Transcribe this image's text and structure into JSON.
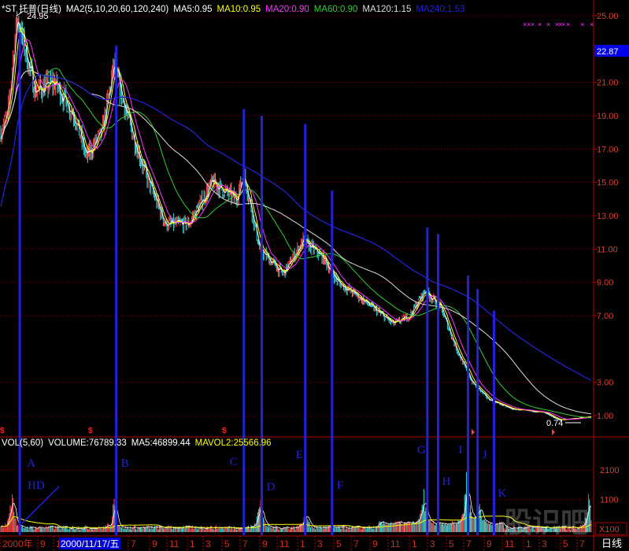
{
  "header": {
    "title": "*ST 托普(日线)",
    "indicator": "MA2(5,10,20,60,120,240)",
    "ma": [
      {
        "label": "MA5:0.95",
        "color": "#ffffff"
      },
      {
        "label": "MA10:0.95",
        "color": "#ffff00"
      },
      {
        "label": "MA20:0.90",
        "color": "#ff33ff"
      },
      {
        "label": "MA60:0.90",
        "color": "#33cc33"
      },
      {
        "label": "MA120:1.15",
        "color": "#dddddd"
      },
      {
        "label": "MA240:1.53",
        "color": "#2222cc"
      }
    ]
  },
  "volume_header": {
    "title": "VOL(5,60)",
    "volume": "VOLUME:76789.33",
    "ma5": "MA5:46899.44",
    "mavol2": "MAVOL2:25566.96"
  },
  "chart_data": {
    "type": "candlestick",
    "price_axis": {
      "ticks": [
        "25.00",
        "21.00",
        "19.00",
        "17.00",
        "15.00",
        "13.00",
        "11.00",
        "9.00",
        "7.00",
        "3.00",
        "1.00"
      ],
      "range": [
        0.5,
        25.5
      ],
      "current_price": "22.87"
    },
    "volume_axis": {
      "ticks": [
        "2100",
        "1100"
      ],
      "unit": "X100"
    },
    "x_axis": {
      "labels": [
        "2000年",
        "9",
        "1",
        "7",
        "9",
        "11",
        "1",
        "3",
        "5",
        "7",
        "9",
        "11",
        "1",
        "3",
        "5",
        "7",
        "9",
        "11",
        "1",
        "3",
        "5",
        "7",
        "9",
        "11",
        "1",
        "3",
        "5",
        "7"
      ],
      "selected_date": "2000/11/17/五",
      "period": "日线"
    },
    "high_marker": "24.95",
    "low_marker": "0.74",
    "close_path": [
      [
        "2000-05-01",
        18.0
      ],
      [
        "2000-05-26",
        19.0
      ],
      [
        "2000-06-26",
        24.95
      ],
      [
        "2000-08-25",
        20.5
      ],
      [
        "2000-10-29",
        21.0
      ],
      [
        "2001-01-03",
        19.0
      ],
      [
        "2001-02-11",
        16.5
      ],
      [
        "2001-04-02",
        18.0
      ],
      [
        "2001-05-10",
        22.0
      ],
      [
        "2001-07-01",
        18.5
      ],
      [
        "2001-08-23",
        15.5
      ],
      [
        "2001-10-27",
        12.5
      ],
      [
        "2002-01-13",
        12.5
      ],
      [
        "2002-03-30",
        15.0
      ],
      [
        "2002-06-16",
        14.0
      ],
      [
        "2002-07-12",
        15.5
      ],
      [
        "2002-09-03",
        11.0
      ],
      [
        "2002-11-19",
        9.5
      ],
      [
        "2003-01-24",
        11.5
      ],
      [
        "2003-03-28",
        10.5
      ],
      [
        "2003-05-18",
        9.0
      ],
      [
        "2003-08-04",
        8.0
      ],
      [
        "2003-11-17",
        6.5
      ],
      [
        "2004-01-09",
        7.0
      ],
      [
        "2004-02-29",
        8.5
      ],
      [
        "2004-04-20",
        7.5
      ],
      [
        "2004-06-11",
        5.0
      ],
      [
        "2004-08-02",
        3.0
      ],
      [
        "2004-09-24",
        2.0
      ],
      [
        "2004-12-10",
        1.4
      ],
      [
        "2005-03-22",
        1.2
      ],
      [
        "2005-05-13",
        0.74
      ],
      [
        "2005-09-06",
        0.95
      ]
    ],
    "volume_peaks": [
      [
        "2000-06-10",
        1800
      ],
      [
        "2001-05-12",
        1100
      ],
      [
        "2002-09-05",
        1500
      ],
      [
        "2003-02-01",
        900
      ],
      [
        "2004-02-25",
        1300
      ],
      [
        "2004-07-15",
        2300
      ],
      [
        "2004-08-25",
        1000
      ],
      [
        "2005-08-20",
        1200
      ]
    ],
    "annotations": [
      {
        "label": "A",
        "date": "2000-07-05",
        "top_price": 24.0
      },
      {
        "label": "B",
        "date": "2001-05-18",
        "top_price": 23.2
      },
      {
        "label": "C",
        "date": "2002-07-12",
        "top_price": 19.4
      },
      {
        "label": "D",
        "date": "2002-09-10",
        "top_price": 19.0
      },
      {
        "label": "E",
        "date": "2003-02-01",
        "top_price": 18.5
      },
      {
        "label": "F",
        "date": "2003-04-28",
        "top_price": 14.5
      },
      {
        "label": "G",
        "date": "2004-03-07",
        "top_price": 12.3
      },
      {
        "label": "H",
        "date": "2004-04-12",
        "top_price": 11.9
      },
      {
        "label": "I",
        "date": "2004-07-19",
        "top_price": 9.4
      },
      {
        "label": "J",
        "date": "2004-08-20",
        "top_price": 8.6
      },
      {
        "label": "K",
        "date": "2004-10-13",
        "top_price": 7.3
      }
    ],
    "hd_label": "HD",
    "colors": {
      "up": "#ff4444",
      "down": "#33e0e0",
      "frame": "#b00000",
      "grid": "#6a0000",
      "annotation": "#2222dd",
      "ma": [
        "#ffffff",
        "#ffff00",
        "#ff33ff",
        "#33cc33",
        "#dddddd",
        "#2222cc"
      ]
    }
  },
  "watermark": "股识吧"
}
